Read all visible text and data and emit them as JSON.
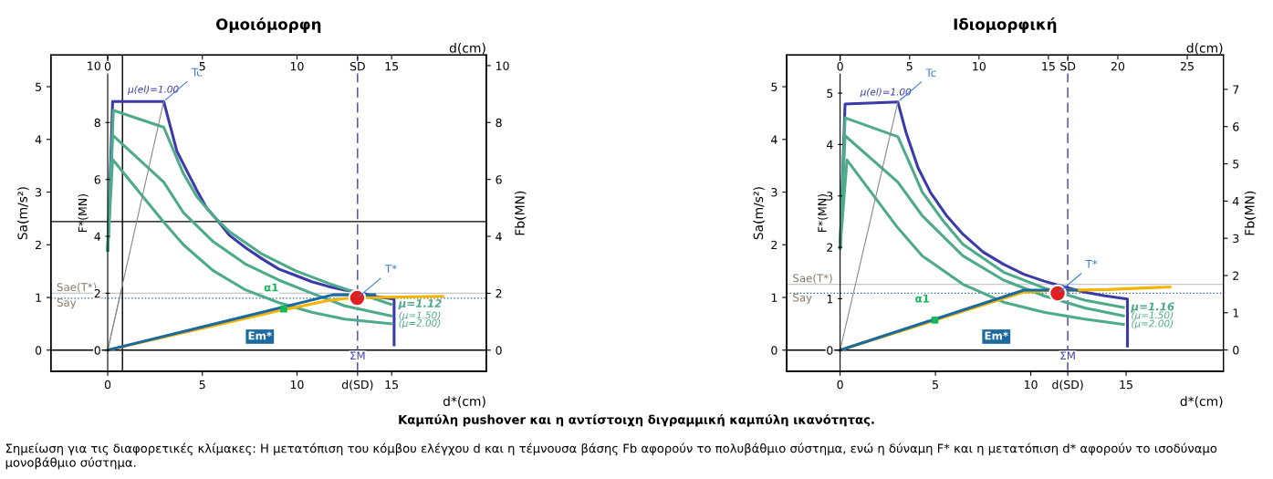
{
  "chart_data": [
    {
      "type": "line",
      "title": "Ομοιόμορφη",
      "xlabel": "d*(cm)",
      "x2label": "d(cm)",
      "ylabel": "Sa(m/s²)",
      "y2label": "Fb(MN)",
      "y3label": "F*(MN)",
      "xlim": [
        -3,
        20
      ],
      "xticks": [
        0,
        5,
        10,
        {
          "value": 13.2,
          "label": "d(SD)"
        },
        15
      ],
      "x2lim": [
        -3,
        20
      ],
      "x2ticks": [
        0,
        5,
        10,
        {
          "value": 13.2,
          "label": "SD"
        },
        15
      ],
      "ylim": [
        -0.4,
        5.6
      ],
      "yticks": [
        0,
        1,
        2,
        3,
        4,
        5
      ],
      "y2lim": [
        -0.74,
        10.37
      ],
      "y2ticks": [
        0,
        2,
        4,
        6,
        8,
        10
      ],
      "y3lim": [
        -0.74,
        10.37
      ],
      "y3ticks": [
        0,
        2,
        4,
        6,
        8,
        10
      ],
      "grid": false,
      "legend": false,
      "series": [
        {
          "name": "μ(el)=1.00",
          "color": "#3a3aa8",
          "x": [
            0,
            0.26,
            2.96,
            3.65,
            4.0,
            4.7,
            5.22,
            5.74,
            6.43,
            7.3,
            8.17,
            9.04,
            9.91,
            10.78,
            11.65,
            12.52,
            13.22,
            14.09,
            15.13,
            15.13
          ],
          "values": [
            1.9,
            4.72,
            4.72,
            3.78,
            3.53,
            3.04,
            2.7,
            2.49,
            2.18,
            1.94,
            1.73,
            1.54,
            1.42,
            1.3,
            1.21,
            1.14,
            1.11,
            1.02,
            0.97,
            0.1
          ]
        },
        {
          "name": "μ=1.12",
          "color": "#4daa8a",
          "x": [
            0,
            0.3,
            2.96,
            4.0,
            4.7,
            5.57,
            6.43,
            8.17,
            9.91,
            11.65,
            14.96
          ],
          "values": [
            1.9,
            4.55,
            4.23,
            3.35,
            2.92,
            2.55,
            2.25,
            1.82,
            1.51,
            1.27,
            0.87
          ]
        },
        {
          "name": "(μ=1.50)",
          "color": "#4daa8a",
          "x": [
            0,
            0.26,
            2.96,
            4.0,
            5.57,
            7.3,
            9.04,
            10.78,
            12.52,
            14.96
          ],
          "values": [
            1.9,
            4.08,
            3.19,
            2.61,
            2.06,
            1.63,
            1.33,
            1.08,
            0.84,
            0.65
          ]
        },
        {
          "name": "(μ=2.00)",
          "color": "#4daa8a",
          "x": [
            0,
            0.26,
            2.96,
            4.0,
            5.57,
            7.3,
            9.04,
            10.78,
            12.52,
            14.96
          ],
          "values": [
            1.9,
            3.62,
            2.43,
            2.0,
            1.51,
            1.14,
            0.9,
            0.72,
            0.59,
            0.5
          ]
        },
        {
          "color": "#888888",
          "x": [
            0,
            2.96
          ],
          "values": [
            0,
            4.72
          ]
        },
        {
          "color": "#888888",
          "x": [
            0,
            0.78
          ],
          "values": [
            0,
            1.24
          ]
        },
        {
          "color": "#f5b400",
          "x": [
            0,
            9.2,
            11.5,
            12.5,
            14,
            17.7
          ],
          "values": [
            0,
            0.76,
            0.93,
            0.98,
            1.0,
            1.02
          ]
        },
        {
          "color": "#1a6aa0",
          "x": [
            0,
            11.9,
            14.1
          ],
          "values": [
            0,
            1.05,
            1.05
          ]
        },
        {
          "type": "scatter",
          "color": "#e02020",
          "marker": "circle",
          "x": [
            13.18
          ],
          "values": [
            0.99
          ]
        },
        {
          "type": "scatter",
          "name": "α1",
          "color": "#12b85a",
          "marker": "square",
          "x": [
            9.3
          ],
          "values": [
            0.78
          ]
        }
      ],
      "ref_lines": [
        {
          "axis": "y",
          "value": 0,
          "color": "#000000"
        },
        {
          "axis": "x",
          "value": 13.2,
          "label": "ΣM",
          "color": "#4040b0",
          "line_style": "dashed"
        },
        {
          "axis": "y",
          "value": 1.08,
          "label": "Sae(T*)",
          "color": "#c8c8c8"
        },
        {
          "axis": "y",
          "value": 0.985,
          "label": "Say",
          "color": "#2060a0",
          "line_style": "dotted"
        },
        {
          "axis": "x",
          "value": 0.78,
          "color": "#000000"
        },
        {
          "axis": "y",
          "value": 2.44,
          "color": "#000000"
        }
      ],
      "annotations": [
        {
          "text": "Tc",
          "x": 2.96,
          "y": 4.72
        },
        {
          "text": "T*",
          "x": 13.18,
          "y": 0.99
        },
        "Em*",
        "Καμπύλη pushover και η αντίστοιχη διγραμμική καμπύλη ικανότητας.",
        "Σημείωση για τις διαφορετικές κλίμακες: Η μετατόπιση του κόμβου ελέγχου d και η τέμνουσα βάσης Fb αφορούν το πολυβάθμιο σύστημα, ενώ η δύναμη F* και η μετατόπιση d* αφορούν το ισοδύναμο μονοβάθμιο σύστημα."
      ]
    },
    {
      "type": "line",
      "title": "Ιδιομορφική",
      "xlabel": "d*(cm)",
      "x2label": "d(cm)",
      "ylabel": "Sa(m/s²)",
      "y2label": "Fb(MN)",
      "y3label": "F*(MN)",
      "xlim": [
        -2.8,
        20.1
      ],
      "xticks": [
        0,
        5,
        10,
        {
          "value": 11.94,
          "label": "d(SD)"
        },
        15
      ],
      "x2lim": [
        -3.85,
        27.6
      ],
      "x2ticks": [
        0,
        5,
        10,
        15,
        {
          "value": 16.4,
          "label": "SD"
        },
        20,
        25
      ],
      "ylim": [
        -0.4,
        5.6
      ],
      "yticks": [
        0,
        1,
        2,
        3,
        4,
        5
      ],
      "y2lim": [
        -0.57,
        7.92
      ],
      "y2ticks": [
        0,
        1,
        2,
        3,
        4,
        5,
        6,
        7
      ],
      "y3lim": [
        -0.41,
        5.74
      ],
      "y3ticks": [
        0,
        1,
        2,
        3,
        4,
        5
      ],
      "grid": false,
      "legend": false,
      "series": [
        {
          "name": "μ(el)=1.00",
          "color": "#3a3aa8",
          "x": [
            0,
            0.26,
            3.03,
            3.45,
            4.09,
            4.73,
            5.59,
            6.44,
            7.51,
            8.57,
            9.64,
            10.7,
            11.77,
            12.83,
            13.9,
            15.07,
            15.07
          ],
          "values": [
            1.94,
            4.67,
            4.71,
            4.14,
            3.46,
            3.0,
            2.55,
            2.2,
            1.86,
            1.63,
            1.44,
            1.31,
            1.2,
            1.1,
            1.03,
            0.97,
            0.08
          ]
        },
        {
          "name": "μ=1.16",
          "color": "#4daa8a",
          "x": [
            0,
            0.26,
            3.03,
            3.67,
            4.31,
            5.37,
            6.44,
            8.57,
            10.7,
            12.83,
            14.86
          ],
          "values": [
            1.94,
            4.41,
            4.05,
            3.53,
            3.0,
            2.47,
            2.01,
            1.48,
            1.18,
            0.95,
            0.81
          ]
        },
        {
          "name": "(μ=1.50)",
          "color": "#4daa8a",
          "x": [
            0,
            0.26,
            3.03,
            4.31,
            6.44,
            8.57,
            10.7,
            12.83,
            14.86
          ],
          "values": [
            1.94,
            4.07,
            3.19,
            2.55,
            1.79,
            1.33,
            1.03,
            0.8,
            0.65
          ]
        },
        {
          "name": "(μ=2.00)",
          "color": "#4daa8a",
          "x": [
            0,
            0.36,
            3.03,
            4.31,
            6.44,
            8.57,
            10.7,
            12.83,
            14.86
          ],
          "values": [
            1.94,
            3.61,
            2.32,
            1.79,
            1.25,
            0.91,
            0.72,
            0.59,
            0.49
          ]
        },
        {
          "color": "#888888",
          "x": [
            0,
            3.03
          ],
          "values": [
            0,
            4.71
          ]
        },
        {
          "color": "#f5b400",
          "x": [
            0,
            5,
            9.6,
            11,
            14,
            17.3
          ],
          "values": [
            0,
            0.57,
            1.1,
            1.13,
            1.15,
            1.2
          ]
        },
        {
          "color": "#1a6aa0",
          "x": [
            0,
            9.64,
            12.4
          ],
          "values": [
            0,
            1.14,
            1.14
          ]
        },
        {
          "type": "scatter",
          "color": "#e02020",
          "marker": "circle",
          "x": [
            11.41
          ],
          "values": [
            1.08
          ]
        },
        {
          "type": "scatter",
          "name": "α1",
          "color": "#12b85a",
          "marker": "square",
          "x": [
            4.97
          ],
          "values": [
            0.57
          ]
        }
      ],
      "ref_lines": [
        {
          "axis": "y",
          "value": 0,
          "color": "#000000"
        },
        {
          "axis": "x",
          "value": 11.94,
          "label": "ΣM",
          "color": "#4040b0",
          "line_style": "dashed"
        },
        {
          "axis": "y",
          "value": 1.25,
          "label": "Sae(T*)",
          "color": "#c8c8c8"
        },
        {
          "axis": "y",
          "value": 1.08,
          "label": "Say",
          "color": "#2060a0",
          "line_style": "dotted"
        }
      ],
      "annotations": [
        {
          "text": "Tc",
          "x": 3.03,
          "y": 4.71
        },
        {
          "text": "T*",
          "x": 11.41,
          "y": 1.08
        },
        "Em*"
      ]
    }
  ]
}
